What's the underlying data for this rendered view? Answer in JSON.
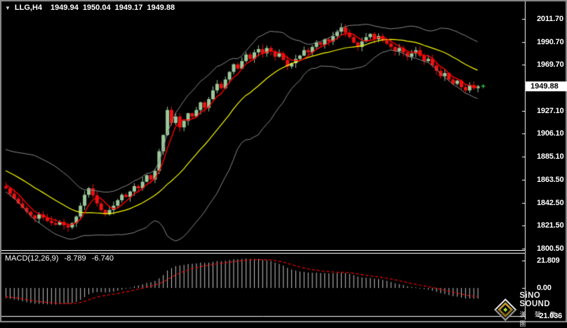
{
  "header": {
    "collapse_icon": "▼",
    "symbol_timeframe": "LLG,H4",
    "open": "1949.94",
    "high": "1950.04",
    "low": "1949.17",
    "close": "1949.88"
  },
  "price_axis": {
    "ticks": [
      "2011.70",
      "1990.70",
      "1969.70",
      "1927.10",
      "1906.10",
      "1885.10",
      "1863.50",
      "1842.50",
      "1821.50",
      "1800.50"
    ],
    "current": "1949.88"
  },
  "macd_panel": {
    "name": "MACD(12,26,9)",
    "macd_value": "-8.789",
    "signal_value": "-6.740",
    "axis": [
      "21.809",
      "0.00",
      "-21.036"
    ]
  },
  "logo": {
    "name_en": "SiNO SOUND",
    "name_cn": "漢 聲 集 團"
  },
  "colors": {
    "background": "#000000",
    "border": "#8c8c8c",
    "up_candle": "#9cc89c",
    "down_candle": "#ee1111",
    "fast_ma": "#ff0000",
    "bollinger_mid": "#ffff00",
    "bollinger_band": "#8a8a8a",
    "histogram": "#c8c8c8",
    "signal_line": "#ff0000",
    "axis_line": "#ffffff",
    "axis_text": "#ffffff",
    "price_tag_bg": "#ffffff",
    "price_tag_text": "#000000",
    "marker": "#44ee44"
  },
  "chart_data": {
    "type": "candlestick+macd",
    "symbol": "LLG",
    "timeframe": "H4",
    "title": "LLG,H4 1949.94 1950.04 1949.17 1949.88",
    "grid": "off",
    "legend_position": "none",
    "y_axis": {
      "ticks": [
        2011.7,
        1990.7,
        1969.7,
        1927.1,
        1906.1,
        1885.1,
        1863.5,
        1842.5,
        1821.5,
        1800.5
      ],
      "current_price": 1949.88
    },
    "ohlc_header": {
      "open": 1949.94,
      "high": 1950.04,
      "low": 1949.17,
      "close": 1949.88
    },
    "closes": [
      1856.0,
      1851.0,
      1846.5,
      1842.0,
      1838.0,
      1834.5,
      1831.0,
      1828.0,
      1832.0,
      1829.0,
      1826.0,
      1824.0,
      1822.5,
      1825.0,
      1822.0,
      1820.0,
      1824.0,
      1830.0,
      1840.0,
      1850.0,
      1856.0,
      1849.5,
      1842.0,
      1836.0,
      1832.0,
      1836.0,
      1840.0,
      1845.0,
      1850.0,
      1848.0,
      1853.0,
      1858.0,
      1856.0,
      1862.0,
      1868.0,
      1864.0,
      1872.0,
      1890.0,
      1905.0,
      1928.0,
      1916.0,
      1922.0,
      1912.0,
      1918.0,
      1925.0,
      1922.0,
      1928.0,
      1935.0,
      1930.0,
      1938.0,
      1946.0,
      1952.0,
      1948.0,
      1956.0,
      1963.0,
      1970.0,
      1966.0,
      1973.0,
      1979.0,
      1975.0,
      1981.0,
      1984.0,
      1980.0,
      1985.0,
      1982.0,
      1977.0,
      1980.0,
      1974.0,
      1968.0,
      1971.0,
      1975.0,
      1978.0,
      1983.0,
      1981.0,
      1986.0,
      1990.0,
      1988.0,
      1993.0,
      1991.0,
      1996.0,
      2000.0,
      2004.0,
      1999.0,
      1995.0,
      1990.0,
      1986.0,
      1991.0,
      1995.0,
      1998.0,
      1993.0,
      1996.0,
      1992.0,
      1989.0,
      1986.0,
      1982.0,
      1985.0,
      1981.0,
      1977.0,
      1980.0,
      1983.0,
      1978.0,
      1973.0,
      1975.0,
      1969.0,
      1964.0,
      1959.0,
      1962.0,
      1956.0,
      1952.0,
      1955.0,
      1949.0,
      1946.0,
      1951.0,
      1948.0,
      1949.88
    ],
    "indicators": {
      "bollinger": {
        "period": 20,
        "deviation": 2
      },
      "fast_ma": {
        "period": 5
      },
      "macd": {
        "fast": 12,
        "slow": 26,
        "signal": 9,
        "current_macd": -8.789,
        "current_signal": -6.74,
        "axis": {
          "max": 21.809,
          "zero": 0.0,
          "min": -21.036
        }
      }
    }
  }
}
